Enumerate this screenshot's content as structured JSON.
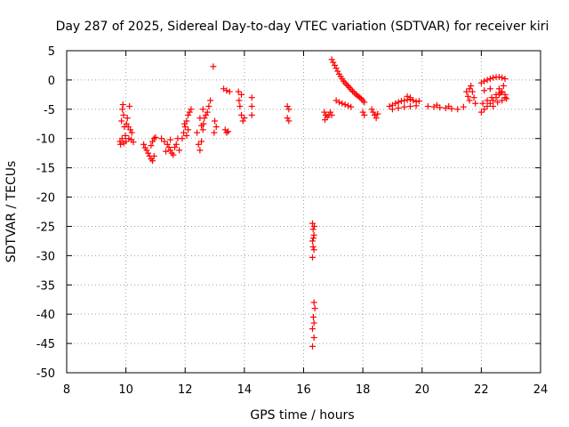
{
  "chart_data": {
    "type": "scatter",
    "title": "Day 287 of 2025, Sidereal Day-to-day VTEC variation (SDTVAR) for receiver kiri",
    "xlabel": "GPS time / hours",
    "ylabel": "SDTVAR / TECUs",
    "xlim": [
      8,
      24
    ],
    "ylim": [
      -50,
      5
    ],
    "xticks": [
      8,
      10,
      12,
      14,
      16,
      18,
      20,
      22,
      24
    ],
    "yticks": [
      5,
      0,
      -5,
      -10,
      -15,
      -20,
      -25,
      -30,
      -35,
      -40,
      -45,
      -50
    ],
    "grid": true,
    "marker": "+",
    "color": "#ff0000",
    "series": [
      {
        "name": "SDTVAR",
        "points": [
          [
            9.8,
            -10.5
          ],
          [
            9.85,
            -7.0
          ],
          [
            9.88,
            -5.0
          ],
          [
            9.9,
            -4.2
          ],
          [
            9.92,
            -6.0
          ],
          [
            9.95,
            -8.0
          ],
          [
            9.98,
            -9.5
          ],
          [
            10.0,
            -10.5
          ],
          [
            10.02,
            -7.5
          ],
          [
            10.05,
            -6.5
          ],
          [
            10.08,
            -8.0
          ],
          [
            10.1,
            -10.0
          ],
          [
            10.12,
            -4.5
          ],
          [
            10.15,
            -8.5
          ],
          [
            10.18,
            -10.2
          ],
          [
            10.2,
            -9.0
          ],
          [
            9.82,
            -11.0
          ],
          [
            9.87,
            -10.0
          ],
          [
            9.93,
            -10.8
          ],
          [
            10.25,
            -10.6
          ],
          [
            10.6,
            -11.0
          ],
          [
            10.65,
            -11.6
          ],
          [
            10.7,
            -12.0
          ],
          [
            10.75,
            -12.5
          ],
          [
            10.8,
            -13.0
          ],
          [
            10.85,
            -13.5
          ],
          [
            10.9,
            -13.8
          ],
          [
            10.95,
            -13.0
          ],
          [
            10.9,
            -10.5
          ],
          [
            10.95,
            -10.0
          ],
          [
            11.0,
            -9.8
          ],
          [
            10.85,
            -11.2
          ],
          [
            11.2,
            -10.0
          ],
          [
            11.3,
            -10.5
          ],
          [
            11.4,
            -11.0
          ],
          [
            11.45,
            -11.5
          ],
          [
            11.5,
            -12.0
          ],
          [
            11.55,
            -12.5
          ],
          [
            11.6,
            -12.8
          ],
          [
            11.65,
            -11.5
          ],
          [
            11.7,
            -11.0
          ],
          [
            11.75,
            -10.0
          ],
          [
            11.8,
            -12.0
          ],
          [
            11.5,
            -10.2
          ],
          [
            11.35,
            -12.2
          ],
          [
            11.9,
            -10.0
          ],
          [
            11.95,
            -9.0
          ],
          [
            12.0,
            -8.0
          ],
          [
            12.05,
            -7.0
          ],
          [
            12.1,
            -6.0
          ],
          [
            12.15,
            -5.5
          ],
          [
            12.2,
            -5.0
          ],
          [
            12.05,
            -9.5
          ],
          [
            12.1,
            -8.5
          ],
          [
            11.98,
            -7.5
          ],
          [
            12.4,
            -9.0
          ],
          [
            12.45,
            -11.0
          ],
          [
            12.5,
            -12.0
          ],
          [
            12.55,
            -10.5
          ],
          [
            12.6,
            -8.5
          ],
          [
            12.62,
            -7.5
          ],
          [
            12.65,
            -6.5
          ],
          [
            12.7,
            -6.0
          ],
          [
            12.75,
            -5.5
          ],
          [
            12.8,
            -4.5
          ],
          [
            12.85,
            -3.5
          ],
          [
            12.5,
            -6.5
          ],
          [
            12.55,
            -7.8
          ],
          [
            12.6,
            -5.0
          ],
          [
            12.95,
            2.3
          ],
          [
            13.0,
            -7.0
          ],
          [
            13.05,
            -8.0
          ],
          [
            12.98,
            -9.0
          ],
          [
            13.35,
            -8.5
          ],
          [
            13.4,
            -9.0
          ],
          [
            13.45,
            -8.8
          ],
          [
            13.3,
            -1.5
          ],
          [
            13.4,
            -1.8
          ],
          [
            13.5,
            -2.0
          ],
          [
            13.8,
            -2.0
          ],
          [
            13.82,
            -3.5
          ],
          [
            13.85,
            -4.5
          ],
          [
            13.9,
            -6.0
          ],
          [
            13.95,
            -7.0
          ],
          [
            14.0,
            -6.5
          ],
          [
            13.9,
            -2.5
          ],
          [
            14.25,
            -3.0
          ],
          [
            14.25,
            -4.5
          ],
          [
            14.25,
            -6.0
          ],
          [
            15.45,
            -4.5
          ],
          [
            15.5,
            -5.0
          ],
          [
            15.45,
            -6.5
          ],
          [
            15.5,
            -7.0
          ],
          [
            16.3,
            -24.5
          ],
          [
            16.32,
            -25.5
          ],
          [
            16.35,
            -26.5
          ],
          [
            16.3,
            -27.5
          ],
          [
            16.32,
            -28.5
          ],
          [
            16.35,
            -29.0
          ],
          [
            16.3,
            -30.3
          ],
          [
            16.33,
            -27.0
          ],
          [
            16.36,
            -25.0
          ],
          [
            16.35,
            -38.0
          ],
          [
            16.38,
            -39.0
          ],
          [
            16.33,
            -40.5
          ],
          [
            16.35,
            -41.5
          ],
          [
            16.3,
            -42.5
          ],
          [
            16.35,
            -44.0
          ],
          [
            16.3,
            -45.5
          ],
          [
            16.7,
            -5.5
          ],
          [
            16.75,
            -6.0
          ],
          [
            16.8,
            -6.3
          ],
          [
            16.85,
            -6.0
          ],
          [
            16.9,
            -5.5
          ],
          [
            16.95,
            -6.0
          ],
          [
            16.72,
            -6.8
          ],
          [
            16.95,
            3.5
          ],
          [
            17.0,
            3.0
          ],
          [
            17.05,
            2.5
          ],
          [
            17.1,
            2.0
          ],
          [
            17.15,
            1.5
          ],
          [
            17.2,
            1.0
          ],
          [
            17.25,
            0.6
          ],
          [
            17.3,
            0.2
          ],
          [
            17.35,
            -0.2
          ],
          [
            17.4,
            -0.5
          ],
          [
            17.45,
            -0.8
          ],
          [
            17.5,
            -1.0
          ],
          [
            17.55,
            -1.3
          ],
          [
            17.6,
            -1.6
          ],
          [
            17.65,
            -1.9
          ],
          [
            17.7,
            -2.1
          ],
          [
            17.75,
            -2.4
          ],
          [
            17.8,
            -2.6
          ],
          [
            17.85,
            -2.8
          ],
          [
            17.9,
            -3.0
          ],
          [
            17.95,
            -3.2
          ],
          [
            18.0,
            -3.5
          ],
          [
            18.05,
            -3.8
          ],
          [
            17.1,
            -3.5
          ],
          [
            17.2,
            -3.8
          ],
          [
            17.3,
            -4.0
          ],
          [
            17.4,
            -4.2
          ],
          [
            17.5,
            -4.4
          ],
          [
            17.6,
            -4.6
          ],
          [
            18.0,
            -5.5
          ],
          [
            18.05,
            -6.0
          ],
          [
            18.3,
            -5.0
          ],
          [
            18.35,
            -5.5
          ],
          [
            18.4,
            -6.0
          ],
          [
            18.45,
            -6.5
          ],
          [
            18.5,
            -5.8
          ],
          [
            18.9,
            -4.5
          ],
          [
            19.0,
            -4.3
          ],
          [
            19.1,
            -4.0
          ],
          [
            19.2,
            -3.8
          ],
          [
            19.3,
            -3.6
          ],
          [
            19.4,
            -3.5
          ],
          [
            19.5,
            -3.4
          ],
          [
            19.6,
            -3.3
          ],
          [
            19.7,
            -3.5
          ],
          [
            19.8,
            -3.7
          ],
          [
            19.9,
            -3.6
          ],
          [
            19.0,
            -5.0
          ],
          [
            19.2,
            -4.8
          ],
          [
            19.4,
            -4.6
          ],
          [
            19.6,
            -4.5
          ],
          [
            19.8,
            -4.4
          ],
          [
            19.5,
            -2.8
          ],
          [
            19.6,
            -3.0
          ],
          [
            20.2,
            -4.5
          ],
          [
            20.4,
            -4.6
          ],
          [
            20.6,
            -4.7
          ],
          [
            20.8,
            -4.8
          ],
          [
            21.0,
            -4.9
          ],
          [
            21.2,
            -5.0
          ],
          [
            21.4,
            -4.6
          ],
          [
            20.5,
            -4.3
          ],
          [
            20.9,
            -4.5
          ],
          [
            21.5,
            -2.0
          ],
          [
            21.6,
            -1.5
          ],
          [
            21.65,
            -1.0
          ],
          [
            21.7,
            -2.0
          ],
          [
            21.75,
            -3.0
          ],
          [
            21.8,
            -4.0
          ],
          [
            21.6,
            -3.5
          ],
          [
            21.55,
            -2.8
          ],
          [
            22.0,
            -0.5
          ],
          [
            22.1,
            -0.2
          ],
          [
            22.2,
            0.0
          ],
          [
            22.3,
            0.2
          ],
          [
            22.4,
            0.4
          ],
          [
            22.5,
            0.5
          ],
          [
            22.6,
            0.5
          ],
          [
            22.7,
            0.4
          ],
          [
            22.8,
            0.2
          ],
          [
            22.0,
            -5.5
          ],
          [
            22.1,
            -5.0
          ],
          [
            22.2,
            -4.5
          ],
          [
            22.3,
            -4.0
          ],
          [
            22.4,
            -3.5
          ],
          [
            22.5,
            -3.0
          ],
          [
            22.6,
            -2.5
          ],
          [
            22.7,
            -2.0
          ],
          [
            22.8,
            -2.5
          ],
          [
            22.05,
            -4.0
          ],
          [
            22.2,
            -3.5
          ],
          [
            22.35,
            -3.0
          ],
          [
            22.5,
            -2.5
          ],
          [
            22.65,
            -2.2
          ],
          [
            22.8,
            -3.0
          ],
          [
            22.4,
            -4.5
          ],
          [
            22.55,
            -3.8
          ],
          [
            22.7,
            -3.5
          ],
          [
            22.85,
            -3.2
          ],
          [
            22.1,
            -1.8
          ],
          [
            22.3,
            -1.5
          ],
          [
            22.6,
            -1.5
          ],
          [
            22.75,
            -1.0
          ]
        ]
      }
    ]
  }
}
